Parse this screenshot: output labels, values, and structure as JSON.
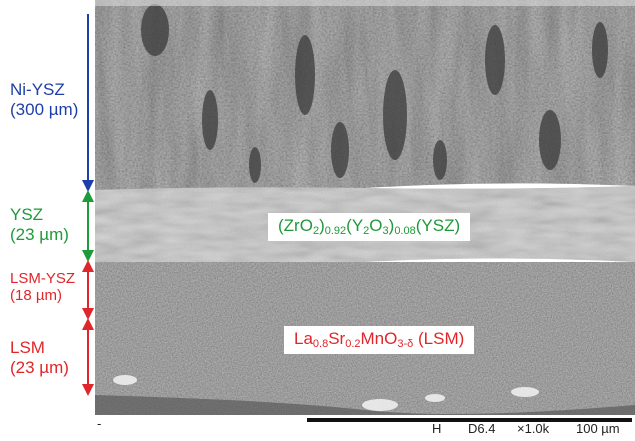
{
  "layers": {
    "ni_ysz": {
      "name": "Ni-YSZ",
      "thickness": "(300 µm)"
    },
    "ysz": {
      "name": "YSZ",
      "thickness": "(23 µm)"
    },
    "lsm_ysz": {
      "name": "LSM-YSZ",
      "thickness": "(18 µm)"
    },
    "lsm": {
      "name": "LSM",
      "thickness": "(23 µm)"
    }
  },
  "formula_ysz": {
    "p1": "(ZrO",
    "s1": "2",
    "p2": ")",
    "s2": "0.92",
    "p3": "(Y",
    "s3": "2",
    "p4": "O",
    "s4": "3",
    "p5": ")",
    "s5": "0.08",
    "p6": "(YSZ)"
  },
  "formula_lsm": {
    "p1": "La",
    "s1": "0.8",
    "p2": "Sr",
    "s2": "0.2",
    "p3": "MnO",
    "s3": "3-δ",
    "p4": " (LSM)"
  },
  "footer": {
    "dash": "-",
    "mode": "H",
    "distance": "D6.4",
    "magnification": "×1.0k",
    "scale": "100 µm"
  },
  "colors": {
    "ni_ysz_arrow": "#1f3fa8",
    "ysz_arrow": "#1f9a3a",
    "lsm_arrow": "#e0262a"
  }
}
